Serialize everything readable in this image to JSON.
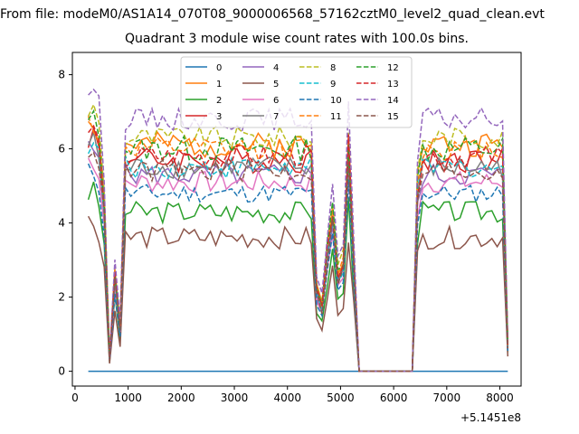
{
  "figure": {
    "suptitle": "From file: modeM0/AS1A14_070T08_9000006568_57162cztM0_level2_quad_clean.evt",
    "title": "Quadrant 3 module wise count rates with 100.0s bins."
  },
  "chart_data": {
    "type": "line",
    "title": "Quadrant 3 module wise count rates with 100.0s bins.",
    "xlabel": "",
    "ylabel": "",
    "x_offset_label": "+5.1451e8",
    "xlim": [
      -50,
      8400
    ],
    "ylim": [
      -0.4,
      8.6
    ],
    "x_ticks": [
      0,
      1000,
      2000,
      3000,
      4000,
      5000,
      6000,
      7000,
      8000
    ],
    "y_ticks": [
      0,
      2,
      4,
      6,
      8
    ],
    "grid": false,
    "legend": {
      "placement": "top-center",
      "columns": 4
    },
    "x": [
      250,
      350,
      450,
      550,
      650,
      750,
      850,
      950,
      1050,
      1150,
      1250,
      1350,
      1450,
      1550,
      1650,
      1750,
      1850,
      1950,
      2050,
      2150,
      2250,
      2350,
      2450,
      2550,
      2650,
      2750,
      2850,
      2950,
      3050,
      3150,
      3250,
      3350,
      3450,
      3550,
      3650,
      3750,
      3850,
      3950,
      4050,
      4150,
      4250,
      4350,
      4450,
      4550,
      4650,
      4750,
      4850,
      4950,
      5050,
      5150,
      5250,
      5350,
      5450,
      5550,
      5650,
      5750,
      5850,
      5950,
      6050,
      6150,
      6250,
      6350,
      6450,
      6550,
      6650,
      6750,
      6850,
      6950,
      7050,
      7150,
      7250,
      7350,
      7450,
      7550,
      7650,
      7750,
      7850,
      7950,
      8050,
      8150
    ],
    "series": [
      {
        "name": "0",
        "color": "#1f77b4",
        "dash": false,
        "base": 0,
        "amp": 0,
        "seed": 1
      },
      {
        "name": "1",
        "color": "#ff7f0e",
        "dash": false,
        "base": 6.1,
        "amp": 0.35,
        "seed": 2
      },
      {
        "name": "2",
        "color": "#2ca02c",
        "dash": false,
        "base": 4.3,
        "amp": 0.3,
        "seed": 3
      },
      {
        "name": "3",
        "color": "#d62728",
        "dash": false,
        "base": 5.7,
        "amp": 0.35,
        "seed": 4
      },
      {
        "name": "4",
        "color": "#9467bd",
        "dash": false,
        "base": 5.3,
        "amp": 0.3,
        "seed": 5
      },
      {
        "name": "5",
        "color": "#8c564b",
        "dash": false,
        "base": 3.6,
        "amp": 0.3,
        "seed": 6
      },
      {
        "name": "6",
        "color": "#e377c2",
        "dash": false,
        "base": 5.1,
        "amp": 0.3,
        "seed": 7
      },
      {
        "name": "7",
        "color": "#7f7f7f",
        "dash": false,
        "base": 5.5,
        "amp": 0.3,
        "seed": 8
      },
      {
        "name": "8",
        "color": "#bcbd22",
        "dash": true,
        "base": 6.3,
        "amp": 0.3,
        "seed": 9
      },
      {
        "name": "9",
        "color": "#17becf",
        "dash": true,
        "base": 5.5,
        "amp": 0.3,
        "seed": 10
      },
      {
        "name": "10",
        "color": "#1f77b4",
        "dash": true,
        "base": 4.8,
        "amp": 0.25,
        "seed": 11
      },
      {
        "name": "11",
        "color": "#ff7f0e",
        "dash": true,
        "base": 6.0,
        "amp": 0.3,
        "seed": 12
      },
      {
        "name": "12",
        "color": "#2ca02c",
        "dash": true,
        "base": 6.0,
        "amp": 0.35,
        "seed": 13
      },
      {
        "name": "13",
        "color": "#d62728",
        "dash": true,
        "base": 5.8,
        "amp": 0.3,
        "seed": 14
      },
      {
        "name": "14",
        "color": "#9467bd",
        "dash": true,
        "base": 6.8,
        "amp": 0.3,
        "seed": 15
      },
      {
        "name": "15",
        "color": "#8c564b",
        "dash": true,
        "base": 5.4,
        "amp": 0.3,
        "seed": 16
      }
    ]
  }
}
